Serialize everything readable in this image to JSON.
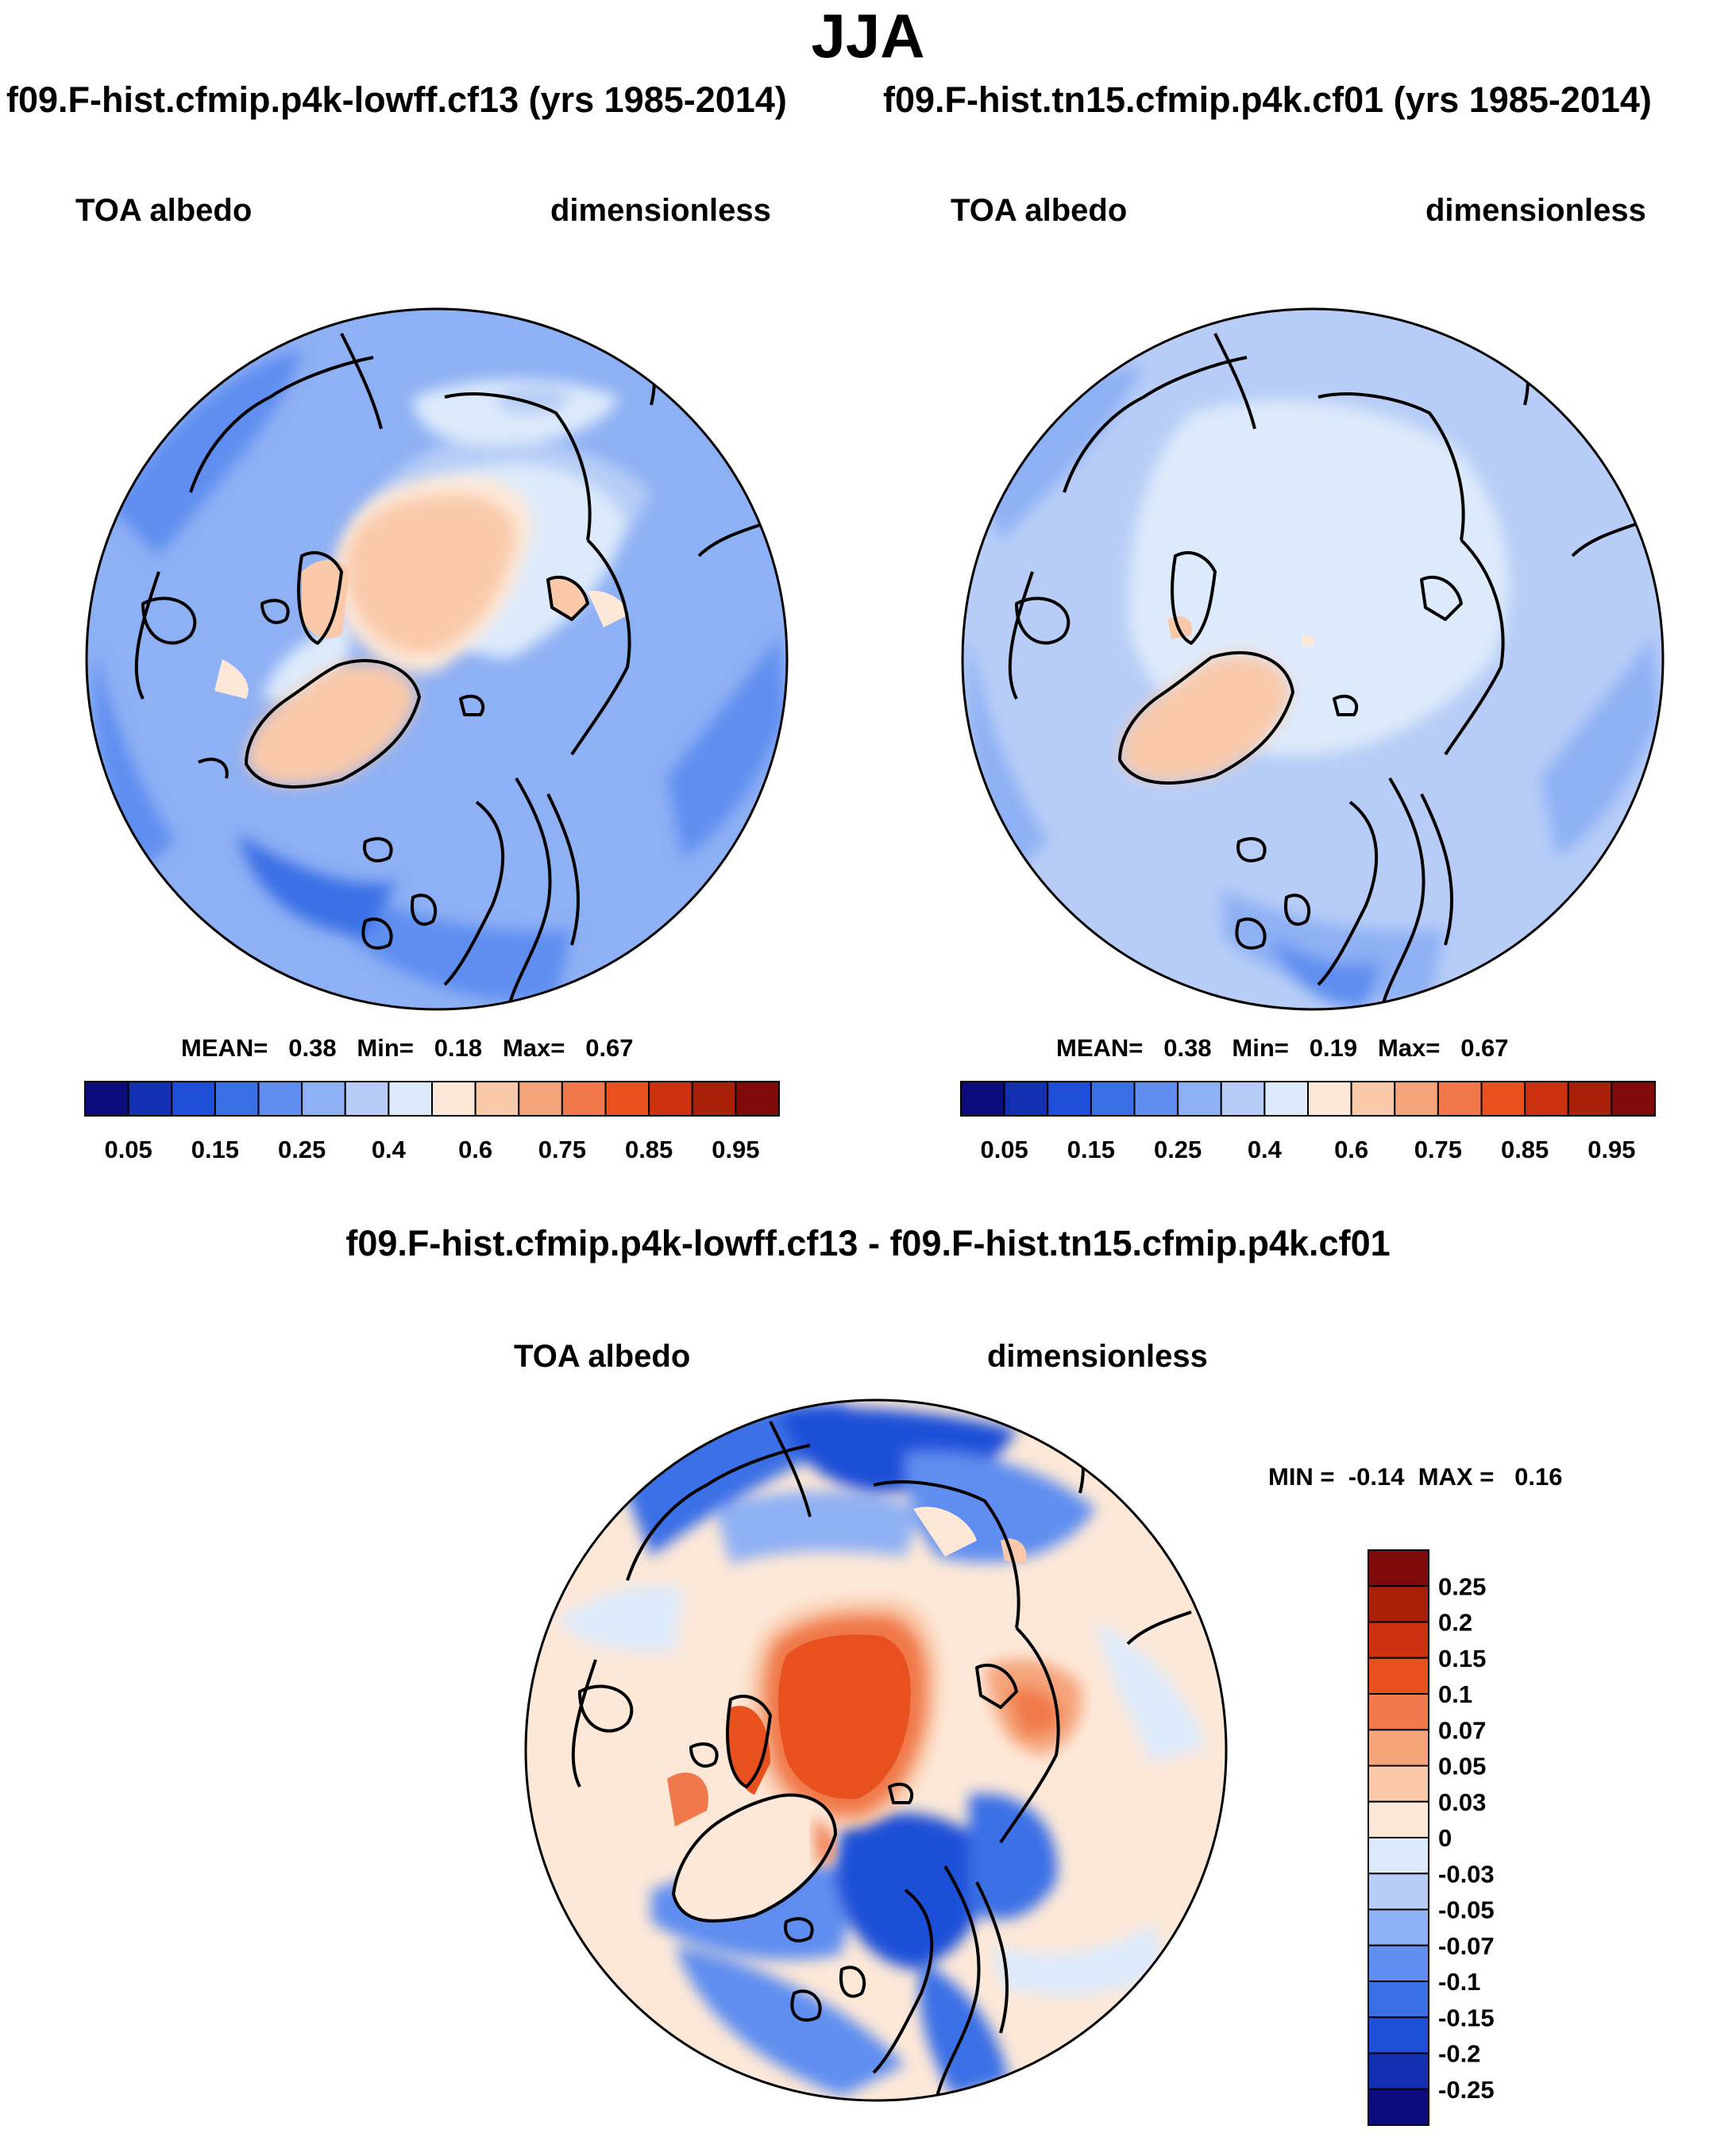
{
  "title": "JJA",
  "panels": [
    {
      "case_title": "f09.F-hist.cfmip.p4k-lowff.cf13 (yrs 1985-2014)",
      "left_label": "TOA albedo",
      "right_label": "dimensionless",
      "stats": {
        "mean_label": "MEAN=",
        "mean": "0.38",
        "min_label": "Min=",
        "min": "0.18",
        "max_label": "Max=",
        "max": "0.67"
      }
    },
    {
      "case_title": "f09.F-hist.tn15.cfmip.p4k.cf01 (yrs 1985-2014)",
      "left_label": "TOA albedo",
      "right_label": "dimensionless",
      "stats": {
        "mean_label": "MEAN=",
        "mean": "0.38",
        "min_label": "Min=",
        "min": "0.19",
        "max_label": "Max=",
        "max": "0.67"
      }
    }
  ],
  "diff_panel": {
    "title": "f09.F-hist.cfmip.p4k-lowff.cf13 - f09.F-hist.tn15.cfmip.p4k.cf01",
    "left_label": "TOA albedo",
    "right_label": "dimensionless",
    "stats": {
      "min_label": "MIN =",
      "min": "-0.14",
      "max_label": "MAX =",
      "max": "0.16"
    }
  },
  "chart_data": [
    {
      "type": "heatmap",
      "projection": "north-polar-stereographic",
      "title": "TOA albedo",
      "units": "dimensionless",
      "field_summary": {
        "mean": 0.38,
        "min": 0.18,
        "max": 0.67
      },
      "colorbar": {
        "orientation": "horizontal",
        "tick_labels": [
          "0.05",
          "0.15",
          "0.25",
          "0.4",
          "0.6",
          "0.75",
          "0.85",
          "0.95"
        ],
        "colors": [
          "#0b0b7e",
          "#1330b2",
          "#1f4fd8",
          "#3b6fe6",
          "#5f8ef0",
          "#8eb0f4",
          "#b7cdf7",
          "#ddeafb",
          "#fde8d8",
          "#f9c9aa",
          "#f5a47a",
          "#f0784a",
          "#e8501e",
          "#cc3210",
          "#a82008",
          "#7e0a0a"
        ]
      }
    },
    {
      "type": "heatmap",
      "projection": "north-polar-stereographic",
      "title": "TOA albedo",
      "units": "dimensionless",
      "field_summary": {
        "mean": 0.38,
        "min": 0.19,
        "max": 0.67
      },
      "colorbar": {
        "orientation": "horizontal",
        "tick_labels": [
          "0.05",
          "0.15",
          "0.25",
          "0.4",
          "0.6",
          "0.75",
          "0.85",
          "0.95"
        ],
        "colors": [
          "#0b0b7e",
          "#1330b2",
          "#1f4fd8",
          "#3b6fe6",
          "#5f8ef0",
          "#8eb0f4",
          "#b7cdf7",
          "#ddeafb",
          "#fde8d8",
          "#f9c9aa",
          "#f5a47a",
          "#f0784a",
          "#e8501e",
          "#cc3210",
          "#a82008",
          "#7e0a0a"
        ]
      }
    },
    {
      "type": "heatmap",
      "projection": "north-polar-stereographic",
      "title": "TOA albedo",
      "units": "dimensionless",
      "field_summary": {
        "min": -0.14,
        "max": 0.16
      },
      "colorbar": {
        "orientation": "vertical",
        "tick_labels": [
          "0.25",
          "0.2",
          "0.15",
          "0.1",
          "0.07",
          "0.05",
          "0.03",
          "0",
          "-0.03",
          "-0.05",
          "-0.07",
          "-0.1",
          "-0.15",
          "-0.2",
          "-0.25"
        ],
        "colors": [
          "#7e0a0a",
          "#a82008",
          "#cc3210",
          "#e8501e",
          "#f0784a",
          "#f5a47a",
          "#f9c9aa",
          "#fde8d8",
          "#ddeafb",
          "#b7cdf7",
          "#8eb0f4",
          "#5f8ef0",
          "#3b6fe6",
          "#1f4fd8",
          "#1330b2",
          "#0b0b7e"
        ]
      }
    }
  ]
}
